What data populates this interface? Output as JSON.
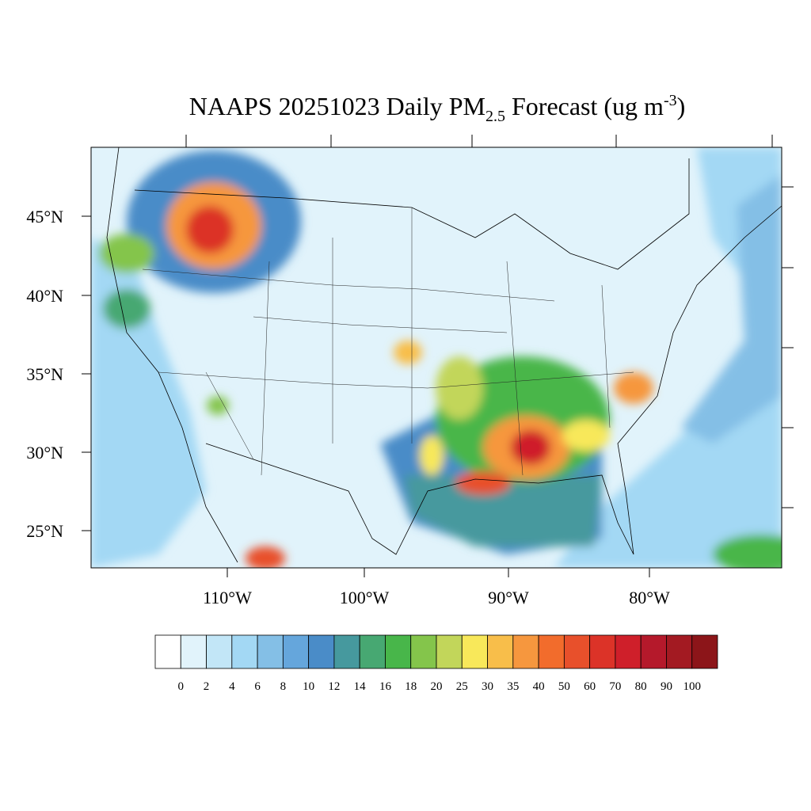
{
  "title": {
    "main": "NAAPS 20251023 Daily PM",
    "sub": "2.5",
    "rest": " Forecast (ug m",
    "sup": "-3",
    "close": ")"
  },
  "lat_labels": [
    "45°N",
    "40°N",
    "35°N",
    "30°N",
    "25°N"
  ],
  "lon_labels": [
    "110°W",
    "100°W",
    "90°W",
    "80°W"
  ],
  "colorbar": {
    "labels": [
      0,
      2,
      4,
      6,
      8,
      10,
      12,
      14,
      16,
      18,
      20,
      25,
      30,
      35,
      40,
      50,
      60,
      70,
      80,
      90,
      100
    ],
    "colors": [
      "#ffffff",
      "#e1f3fb",
      "#c2e6f7",
      "#a3d8f4",
      "#84bfe6",
      "#65a6dc",
      "#4a8cc8",
      "#46999e",
      "#47a872",
      "#48b64a",
      "#84c54b",
      "#c2d65a",
      "#f8e85a",
      "#f8be4a",
      "#f6973e",
      "#f26c2c",
      "#e8502b",
      "#dc3328",
      "#cf1f2a",
      "#b5192b",
      "#a31a22",
      "#8c1519"
    ]
  }
}
